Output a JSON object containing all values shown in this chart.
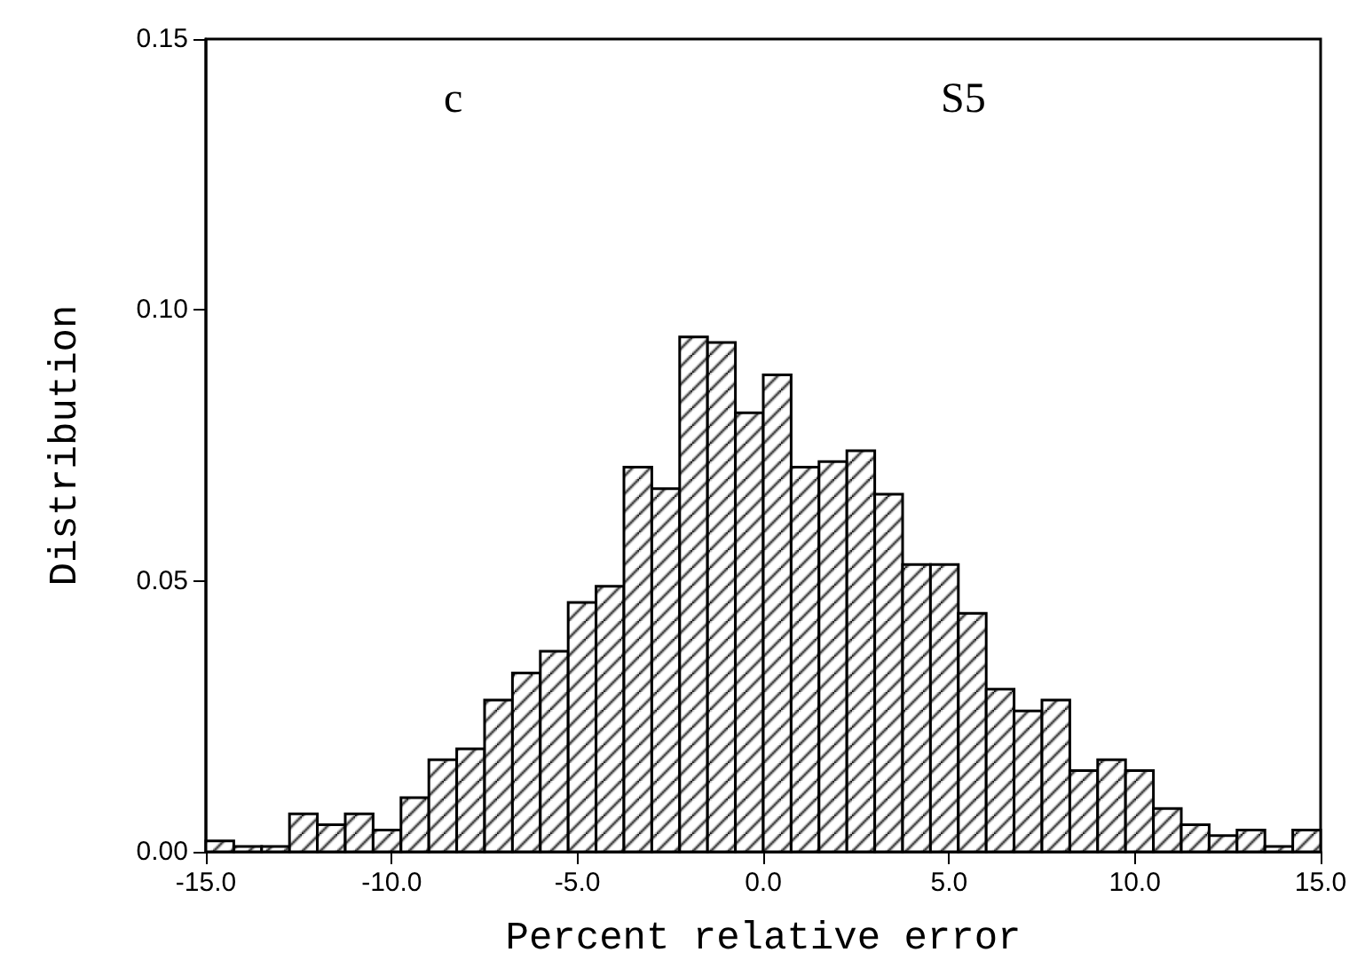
{
  "chart_data": {
    "type": "histogram",
    "xlabel": "Percent relative error",
    "ylabel": "Distribution",
    "annotations": [
      "c",
      "S5"
    ],
    "bins": [
      -15,
      -14.25,
      -13.5,
      -12.75,
      -12,
      -11.25,
      -10.5,
      -9.75,
      -9,
      -8.25,
      -7.5,
      -6.75,
      -6,
      -5.25,
      -4.5,
      -3.75,
      -3,
      -2.25,
      -1.5,
      -0.75,
      0,
      0.75,
      1.5,
      2.25,
      3,
      3.75,
      4.5,
      5.25,
      6,
      6.75,
      7.5,
      8.25,
      9,
      9.75,
      10.5,
      11.25,
      12,
      12.75,
      13.5,
      14.25,
      15
    ],
    "values": [
      0.002,
      0.001,
      0.001,
      0.007,
      0.005,
      0.007,
      0.004,
      0.01,
      0.017,
      0.019,
      0.028,
      0.033,
      0.037,
      0.046,
      0.049,
      0.071,
      0.067,
      0.095,
      0.094,
      0.081,
      0.088,
      0.071,
      0.072,
      0.074,
      0.066,
      0.053,
      0.053,
      0.044,
      0.03,
      0.026,
      0.028,
      0.015,
      0.017,
      0.015,
      0.008,
      0.005,
      0.003,
      0.004,
      0.001,
      0.004
    ],
    "color": "#000000",
    "xlim": [
      -15,
      15
    ],
    "xticks": [
      {
        "value": -15,
        "label": "-15.0"
      },
      {
        "value": -10,
        "label": "-10.0"
      },
      {
        "value": -5,
        "label": "-5.0"
      },
      {
        "value": 0,
        "label": "0.0"
      },
      {
        "value": 5,
        "label": "5.0"
      },
      {
        "value": 10,
        "label": "10.0"
      },
      {
        "value": 15,
        "label": "15.0"
      }
    ],
    "ylim": [
      0,
      0.15
    ],
    "yticks": [
      {
        "value": 0,
        "label": "0.00"
      },
      {
        "value": 0.05,
        "label": "0.05"
      },
      {
        "value": 0.1,
        "label": "0.10"
      },
      {
        "value": 0.15,
        "label": "0.15"
      }
    ],
    "grid": false,
    "legend": false
  }
}
